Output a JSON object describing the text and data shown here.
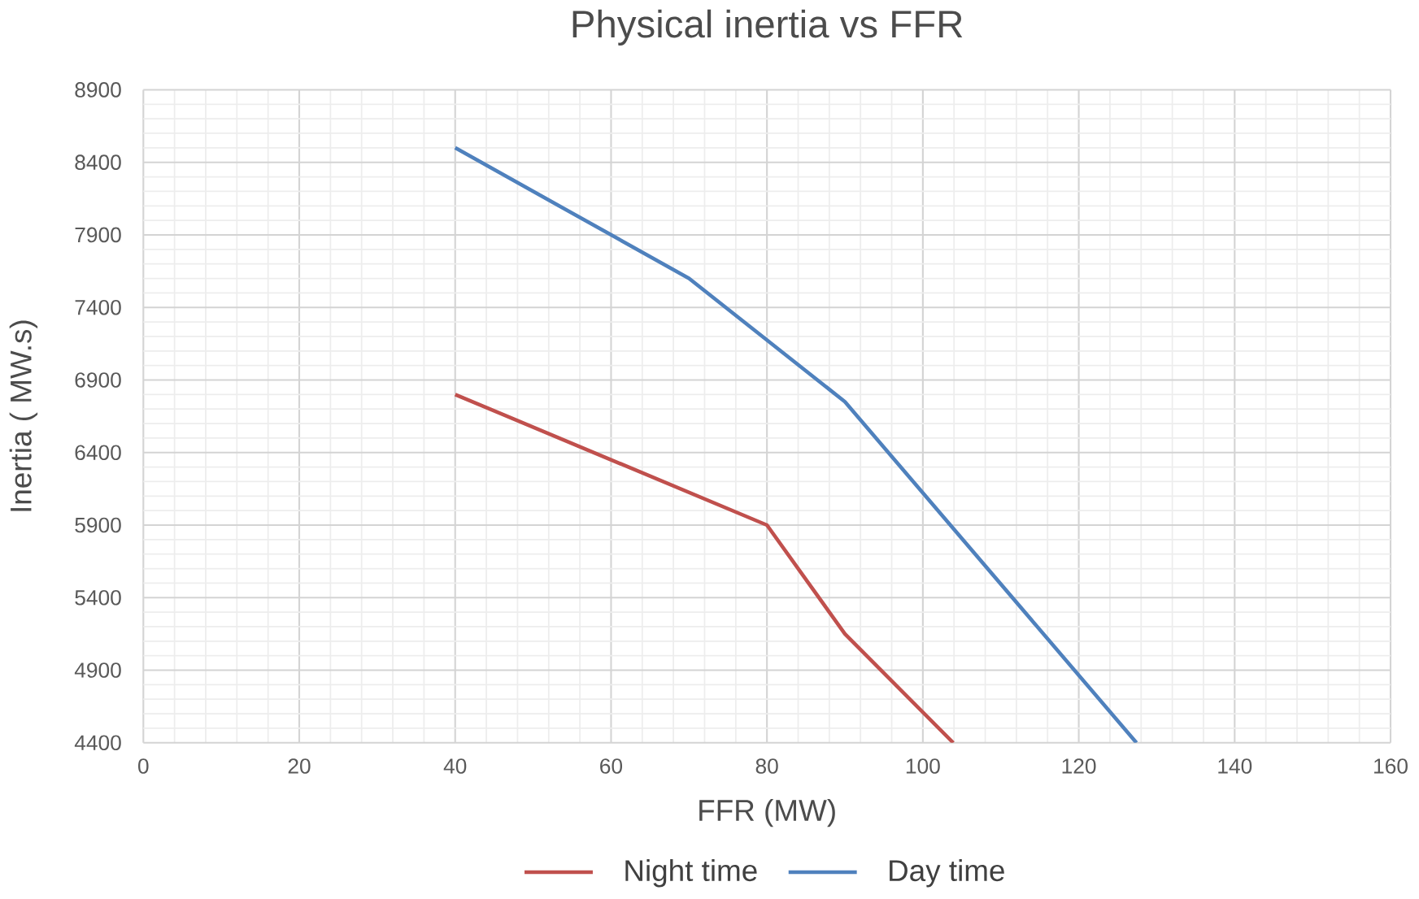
{
  "chart_data": {
    "type": "line",
    "title": "Physical inertia vs FFR",
    "xlabel": "FFR (MW)",
    "ylabel": "Inertia ( MW.s)",
    "xlim": [
      0,
      160
    ],
    "xticks": [
      0,
      20,
      40,
      60,
      80,
      100,
      120,
      140,
      160
    ],
    "ylim": [
      4400,
      8900
    ],
    "yticks": [
      4400,
      4900,
      5400,
      5900,
      6400,
      6900,
      7400,
      7900,
      8400,
      8900
    ],
    "grid": true,
    "legend": "bottom",
    "marker": "none",
    "line_style": "solid",
    "series": [
      {
        "name": "Night time",
        "color": "#c0504d",
        "x": [
          40,
          80,
          90,
          103.9
        ],
        "values": [
          6800,
          5900,
          5150,
          4400
        ]
      },
      {
        "name": "Day time",
        "color": "#4f81bd",
        "x": [
          40,
          70,
          90,
          127.4
        ],
        "values": [
          8500,
          7600,
          6750,
          4400
        ]
      }
    ]
  }
}
